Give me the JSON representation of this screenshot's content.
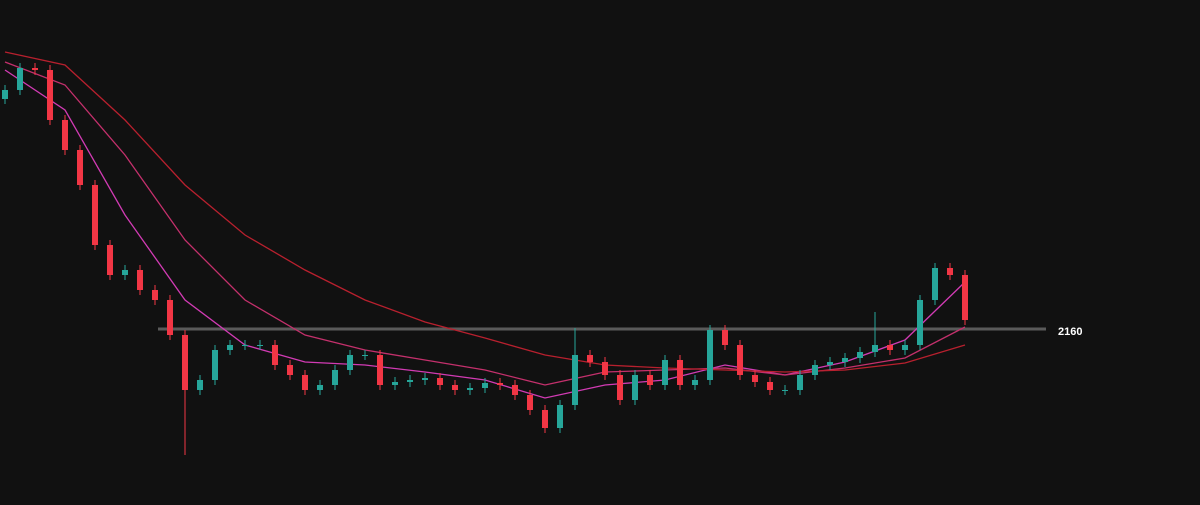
{
  "chart_data": {
    "type": "candlestick",
    "ylim": [
      1808,
      2818
    ],
    "up_color": "#26a69a",
    "down_color": "#f23645",
    "open": [
      2620,
      2638,
      2682,
      2678,
      2578,
      2518,
      2448,
      2328,
      2268,
      2278,
      2238,
      2218,
      2148,
      2038,
      2058,
      2118,
      2128,
      2128,
      2128,
      2088,
      2068,
      2038,
      2048,
      2078,
      2108,
      2108,
      2048,
      2054,
      2058,
      2062,
      2048,
      2038,
      2042,
      2052,
      2048,
      2028,
      1998,
      1962,
      2008,
      2108,
      2094,
      2068,
      2018,
      2068,
      2048,
      2098,
      2048,
      2058,
      2158,
      2128,
      2068,
      2054,
      2038,
      2038,
      2068,
      2088,
      2094,
      2102,
      2114,
      2128,
      2118,
      2128,
      2218,
      2282,
      2268
    ],
    "high": [
      2648,
      2692,
      2692,
      2688,
      2588,
      2528,
      2458,
      2338,
      2288,
      2288,
      2248,
      2228,
      2158,
      2068,
      2128,
      2138,
      2138,
      2138,
      2138,
      2098,
      2078,
      2058,
      2088,
      2118,
      2118,
      2118,
      2064,
      2068,
      2072,
      2072,
      2058,
      2052,
      2062,
      2062,
      2058,
      2038,
      2008,
      2018,
      2162,
      2118,
      2104,
      2078,
      2078,
      2078,
      2108,
      2108,
      2068,
      2168,
      2168,
      2138,
      2078,
      2064,
      2048,
      2078,
      2098,
      2104,
      2112,
      2124,
      2194,
      2138,
      2138,
      2228,
      2292,
      2292,
      2278
    ],
    "low": [
      2610,
      2628,
      2668,
      2568,
      2508,
      2438,
      2318,
      2258,
      2258,
      2228,
      2208,
      2138,
      1908,
      2028,
      2048,
      2108,
      2118,
      2118,
      2078,
      2058,
      2028,
      2028,
      2038,
      2068,
      2098,
      2038,
      2038,
      2044,
      2048,
      2038,
      2028,
      2028,
      2032,
      2038,
      2018,
      1988,
      1952,
      1952,
      1998,
      2084,
      2058,
      2008,
      2008,
      2038,
      2038,
      2038,
      2038,
      2048,
      2118,
      2058,
      2044,
      2028,
      2028,
      2028,
      2058,
      2078,
      2084,
      2092,
      2104,
      2108,
      2108,
      2118,
      2208,
      2258,
      2168
    ],
    "close": [
      2638,
      2682,
      2678,
      2578,
      2518,
      2448,
      2328,
      2268,
      2278,
      2238,
      2218,
      2148,
      2038,
      2058,
      2118,
      2128,
      2128,
      2128,
      2088,
      2068,
      2038,
      2048,
      2078,
      2108,
      2108,
      2048,
      2054,
      2058,
      2062,
      2048,
      2038,
      2042,
      2052,
      2048,
      2028,
      1998,
      1962,
      2008,
      2108,
      2094,
      2068,
      2018,
      2068,
      2048,
      2098,
      2048,
      2058,
      2158,
      2128,
      2068,
      2054,
      2038,
      2038,
      2068,
      2088,
      2094,
      2102,
      2114,
      2128,
      2118,
      2128,
      2218,
      2282,
      2268,
      2178
    ],
    "series": [
      {
        "color": "#d23bb4",
        "x": [
          0,
          4,
          8,
          12,
          16,
          20,
          24,
          28,
          32,
          36,
          40,
          44,
          48,
          52,
          56,
          60,
          64
        ],
        "values": [
          2678,
          2598,
          2388,
          2218,
          2128,
          2094,
          2088,
          2074,
          2058,
          2022,
          2048,
          2058,
          2088,
          2068,
          2094,
          2138,
          2254
        ]
      },
      {
        "color": "#c4306c",
        "x": [
          0,
          4,
          8,
          12,
          16,
          20,
          24,
          28,
          32,
          36,
          40,
          44,
          48,
          52,
          56,
          60,
          64
        ],
        "values": [
          2694,
          2648,
          2508,
          2338,
          2218,
          2148,
          2118,
          2098,
          2078,
          2048,
          2074,
          2078,
          2082,
          2068,
          2082,
          2102,
          2164
        ]
      },
      {
        "color": "#b8202e",
        "x": [
          0,
          4,
          8,
          12,
          16,
          20,
          24,
          28,
          32,
          36,
          40,
          44,
          48,
          52,
          56,
          60,
          64
        ],
        "values": [
          2714,
          2688,
          2578,
          2448,
          2348,
          2278,
          2218,
          2174,
          2142,
          2108,
          2088,
          2082,
          2078,
          2074,
          2078,
          2092,
          2128
        ]
      }
    ],
    "hlines": [
      2160
    ]
  }
}
